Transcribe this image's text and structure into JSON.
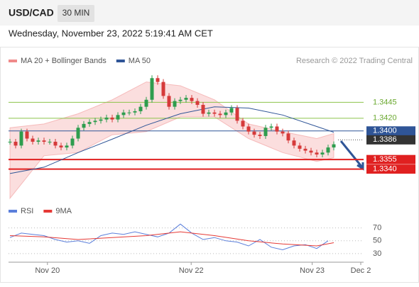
{
  "header": {
    "symbol": "USD/CAD",
    "timeframe": "30 MIN",
    "timestamp": "Wednesday, November 23, 2022 5:19:41 AM CET"
  },
  "chart_data": [
    {
      "type": "candlestick",
      "credit": "Research © 2022 Trading Central",
      "close": [
        1.3383,
        1.3377,
        1.3399,
        1.3388,
        1.3383,
        1.3385,
        1.3383,
        1.3383,
        1.3377,
        1.3374,
        1.3377,
        1.3388,
        1.3405,
        1.3411,
        1.3414,
        1.3416,
        1.3418,
        1.3421,
        1.3418,
        1.3425,
        1.3429,
        1.3429,
        1.3431,
        1.3438,
        1.3449,
        1.3483,
        1.3477,
        1.3455,
        1.3438,
        1.3447,
        1.3449,
        1.3452,
        1.3447,
        1.3441,
        1.3427,
        1.3429,
        1.3427,
        1.3425,
        1.3429,
        1.3436,
        1.3416,
        1.3407,
        1.3399,
        1.3394,
        1.3392,
        1.3405,
        1.3407,
        1.3399,
        1.3396,
        1.3385,
        1.3377,
        1.3372,
        1.3369,
        1.3366,
        1.3363,
        1.3366,
        1.3374,
        1.3379
      ],
      "up_color": "#2e9d4e",
      "down_color": "#d63a3a",
      "ma_x": [
        0,
        6,
        12,
        18,
        24,
        30,
        36,
        42,
        48,
        54,
        57
      ],
      "series": [
        {
          "name": "MA 20 + Bollinger Bands",
          "color": "#f08a8a",
          "upper": [
            1.3405,
            1.3411,
            1.3427,
            1.3449,
            1.3477,
            1.3471,
            1.3449,
            1.3411,
            1.3399,
            1.3388,
            1.3396
          ],
          "lower": [
            1.3294,
            1.3361,
            1.3366,
            1.3394,
            1.3399,
            1.3422,
            1.3422,
            1.3388,
            1.3366,
            1.3352,
            1.3358
          ]
        },
        {
          "name": "MA 50",
          "color": "#2f5597",
          "values": [
            1.3333,
            1.3343,
            1.3366,
            1.3387,
            1.3409,
            1.3427,
            1.3438,
            1.3436,
            1.3425,
            1.3407,
            1.3398
          ]
        }
      ],
      "levels": [
        {
          "value": 1.3445,
          "color": "#8bc34a"
        },
        {
          "value": 1.342,
          "label": "1.3420",
          "color": "#8bc34a"
        },
        {
          "value": 1.34,
          "label": "1.3400",
          "color": "#2f5597"
        },
        {
          "value": 1.3386,
          "color": "#333333"
        },
        {
          "value": 1.3355,
          "color": "#e02020"
        },
        {
          "value": 1.334,
          "label": "1.3340",
          "color": "#e02020"
        }
      ],
      "xlim": [
        -0.25,
        62.25
      ],
      "ylim": [
        1.3285,
        1.35
      ],
      "xticks": [
        {
          "value": 6.6,
          "label": "Nov 20"
        },
        {
          "value": 31.9,
          "label": "Nov 22"
        },
        {
          "value": 53.2,
          "label": "Nov 23"
        },
        {
          "value": 61.75,
          "label": "Dec 2"
        }
      ]
    },
    {
      "type": "line",
      "xlim": [
        -0.25,
        62.25
      ],
      "ylim": [
        20,
        85
      ],
      "yticks": [
        70,
        50,
        30
      ],
      "series": [
        {
          "name": "RSI",
          "color": "#5b7fdb",
          "x": [
            0,
            2,
            4,
            6,
            8,
            10,
            12,
            14,
            16,
            18,
            20,
            22,
            24,
            26,
            28,
            30,
            32,
            34,
            36,
            38,
            40,
            42,
            44,
            46,
            48,
            50,
            52,
            54,
            56
          ],
          "values": [
            55,
            62,
            60,
            58,
            52,
            48,
            50,
            46,
            58,
            62,
            60,
            64,
            60,
            56,
            62,
            76,
            62,
            52,
            55,
            50,
            48,
            42,
            52,
            40,
            36,
            42,
            44,
            38,
            50
          ]
        },
        {
          "name": "9MA",
          "color": "#e53935",
          "x": [
            0,
            6,
            12,
            18,
            24,
            30,
            36,
            42,
            48,
            54,
            57
          ],
          "values": [
            58,
            56,
            52,
            55,
            58,
            64,
            58,
            50,
            45,
            42,
            47
          ]
        }
      ]
    }
  ]
}
